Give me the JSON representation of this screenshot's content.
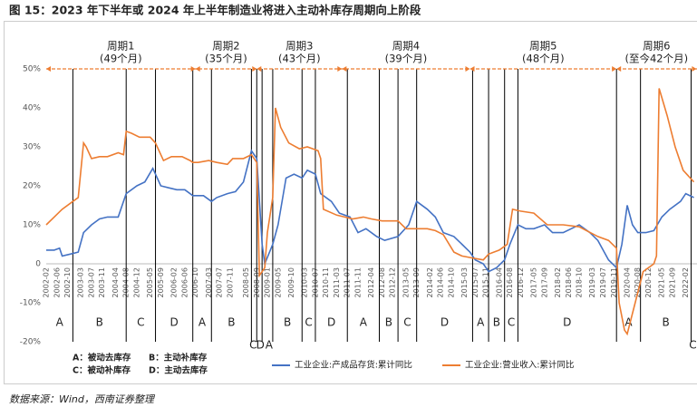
{
  "title": "图 15：2023 年下半年或 2024 年上半年制造业将进入主动补库存周期向上阶段",
  "source": "数据来源：Wind，西南证券整理",
  "chart_data": {
    "type": "line",
    "xlim": [
      "2002-02",
      "2022-06"
    ],
    "ylim": [
      -20,
      50
    ],
    "yticks": [
      {
        "value": 50,
        "label": "50%"
      },
      {
        "value": 40,
        "label": "40%"
      },
      {
        "value": 30,
        "label": "30%"
      },
      {
        "value": 20,
        "label": "20%"
      },
      {
        "value": 10,
        "label": "10%"
      },
      0,
      {
        "value": -10,
        "label": "-10%"
      },
      {
        "value": -20,
        "label": "-20%"
      }
    ],
    "xticks": [
      "2002-02",
      "2002-06",
      "2002-10",
      "2003-03",
      "2003-07",
      "2003-11",
      "2004-04",
      "2004-08",
      "2004-12",
      "2005-05",
      "2005-09",
      "2006-02",
      "2006-06",
      "2006-10",
      "2007-03",
      "2007-07",
      "2007-11",
      "2008-05",
      "2008-09",
      "2009-01",
      "2009-05",
      "2009-10",
      "2010-03",
      "2010-07",
      "2010-11",
      "2011-03",
      "2011-07",
      "2011-11",
      "2012-04",
      "2012-08",
      "2012-12",
      "2013-05",
      "2013-09",
      "2014-02",
      "2014-06",
      "2014-10",
      "2015-03",
      "2015-07",
      "2015-11",
      "2016-04",
      "2016-08",
      "2016-12",
      "2017-05",
      "2017-09",
      "2018-02",
      "2018-06",
      "2018-10",
      "2019-03",
      "2019-07",
      "2019-11",
      "2020-04",
      "2020-08",
      "2020-12",
      "2021-05",
      "2021-09",
      "2022-02"
    ],
    "grid": false,
    "series": [
      {
        "name": "工业企业:产成品存货:累计同比",
        "color": "#4472c4",
        "x": [
          "2002-02",
          "2002-05",
          "2002-07",
          "2002-08",
          "2002-11",
          "2003-02",
          "2003-04",
          "2003-07",
          "2003-10",
          "2004-01",
          "2004-05",
          "2004-08",
          "2004-12",
          "2005-03",
          "2005-06",
          "2005-09",
          "2005-12",
          "2006-03",
          "2006-06",
          "2006-09",
          "2007-01",
          "2007-04",
          "2007-06",
          "2007-10",
          "2008-01",
          "2008-04",
          "2008-07",
          "2008-09",
          "2008-11",
          "2008-12",
          "2009-03",
          "2009-05",
          "2009-08",
          "2009-11",
          "2010-02",
          "2010-04",
          "2010-07",
          "2010-09",
          "2011-01",
          "2011-04",
          "2011-08",
          "2011-11",
          "2012-02",
          "2012-06",
          "2012-09",
          "2013-02",
          "2013-06",
          "2013-09",
          "2014-01",
          "2014-04",
          "2014-07",
          "2014-11",
          "2015-02",
          "2015-05",
          "2015-07",
          "2015-10",
          "2015-12",
          "2016-03",
          "2016-06",
          "2016-08",
          "2016-11",
          "2017-02",
          "2017-05",
          "2017-09",
          "2017-12",
          "2018-04",
          "2018-07",
          "2018-10",
          "2019-02",
          "2019-05",
          "2019-09",
          "2019-12",
          "2020-02",
          "2020-04",
          "2020-06",
          "2020-08",
          "2020-11",
          "2021-02",
          "2021-05",
          "2021-08",
          "2021-12",
          "2022-02",
          "2022-05"
        ],
        "values": [
          3.5,
          3.5,
          4,
          2,
          2.5,
          3,
          8,
          10,
          11.5,
          12,
          12,
          18,
          20,
          21,
          24.5,
          20,
          19.5,
          19,
          19,
          17.5,
          17.5,
          16,
          17,
          18,
          18.5,
          21,
          29,
          27,
          5,
          0,
          5,
          10,
          22,
          23,
          22,
          24,
          23,
          18,
          16,
          13,
          12,
          8,
          9,
          7,
          6,
          7,
          10,
          16,
          14,
          12,
          8,
          7,
          5,
          3,
          1,
          0,
          -2,
          -1,
          1,
          5,
          10,
          9,
          9,
          10,
          8,
          8,
          9,
          10,
          8,
          6,
          1,
          -1,
          5,
          15,
          10,
          8,
          8,
          8.5,
          12,
          14,
          16,
          18,
          17
        ]
      },
      {
        "name": "工业企业:营业收入:累计同比",
        "color": "#ed7d31",
        "x": [
          "2002-02",
          "2002-05",
          "2002-08",
          "2002-12",
          "2003-02",
          "2003-04",
          "2003-05",
          "2003-07",
          "2003-10",
          "2004-01",
          "2004-05",
          "2004-07",
          "2004-08",
          "2004-10",
          "2005-01",
          "2005-05",
          "2005-07",
          "2005-10",
          "2006-01",
          "2006-05",
          "2006-08",
          "2006-09",
          "2006-11",
          "2007-03",
          "2007-06",
          "2007-10",
          "2007-12",
          "2008-04",
          "2008-07",
          "2008-09",
          "2008-10",
          "2008-12",
          "2009-01",
          "2009-03",
          "2009-04",
          "2009-06",
          "2009-09",
          "2010-01",
          "2010-04",
          "2010-08",
          "2010-09",
          "2010-10",
          "2011-03",
          "2011-06",
          "2011-09",
          "2012-01",
          "2012-04",
          "2012-08",
          "2012-11",
          "2013-02",
          "2013-05",
          "2013-09",
          "2014-01",
          "2014-04",
          "2014-07",
          "2014-11",
          "2015-02",
          "2015-06",
          "2015-10",
          "2015-12",
          "2016-04",
          "2016-07",
          "2016-09",
          "2016-12",
          "2017-05",
          "2017-10",
          "2018-04",
          "2018-10",
          "2019-05",
          "2019-09",
          "2019-12",
          "2020-01",
          "2020-03",
          "2020-04",
          "2020-07",
          "2020-10",
          "2021-02",
          "2021-03",
          "2021-04",
          "2021-07",
          "2021-10",
          "2022-01",
          "2022-05"
        ],
        "values": [
          10,
          12,
          14,
          16,
          17,
          31,
          30,
          27,
          27.5,
          27.5,
          28.5,
          28,
          34,
          33.5,
          32.5,
          32.5,
          31,
          26.5,
          27.5,
          27.5,
          26.5,
          26,
          26,
          26.5,
          26,
          25.5,
          27,
          27,
          28,
          26,
          -3,
          -1,
          8,
          17,
          40,
          35,
          31,
          29.5,
          30,
          29,
          27,
          14,
          12.5,
          12,
          11.5,
          12,
          11.5,
          11,
          11,
          11,
          9,
          9,
          9,
          8.5,
          7.5,
          3,
          2,
          1.5,
          1,
          2.5,
          3.5,
          5,
          14,
          13.5,
          13,
          10,
          10,
          9.5,
          7,
          6,
          4,
          -10,
          -17,
          -18,
          -10,
          -2,
          0,
          2,
          45,
          38,
          30,
          24,
          21
        ]
      }
    ],
    "phase_boundaries": [
      "2002-12",
      "2004-08",
      "2005-07",
      "2006-09",
      "2007-04",
      "2008-07",
      "2008-09",
      "2008-11",
      "2009-03",
      "2010-02",
      "2010-07",
      "2011-07",
      "2012-07",
      "2013-02",
      "2013-09",
      "2015-06",
      "2015-12",
      "2016-06",
      "2016-11",
      "2019-12",
      "2020-09",
      "2022-04"
    ],
    "phases": [
      "A",
      "B",
      "C",
      "D",
      "A",
      "B",
      "C",
      "D",
      "A",
      "B",
      "C",
      "D",
      "A",
      "B",
      "C",
      "D",
      "A",
      "B",
      "C",
      "D",
      "A",
      "B",
      "C"
    ],
    "phase_legend": [
      "A：被动去库存",
      "B：主动补库存",
      "C：被动补库存",
      "D：主动去库存"
    ],
    "cycles": [
      {
        "name": "周期1",
        "duration": "(49个月)",
        "start": "2002-02"
      },
      {
        "name": "周期2",
        "duration": "(35个月)",
        "start": "2006-10"
      },
      {
        "name": "周期3",
        "duration": "(43个月)",
        "start": "2008-09"
      },
      {
        "name": "周期4",
        "duration": "(39个月)",
        "start": "2011-05"
      },
      {
        "name": "周期5",
        "duration": "(48个月)",
        "start": "2015-05"
      },
      {
        "name": "周期6",
        "duration": "(至今42个月)",
        "start": "2019-12"
      }
    ]
  }
}
